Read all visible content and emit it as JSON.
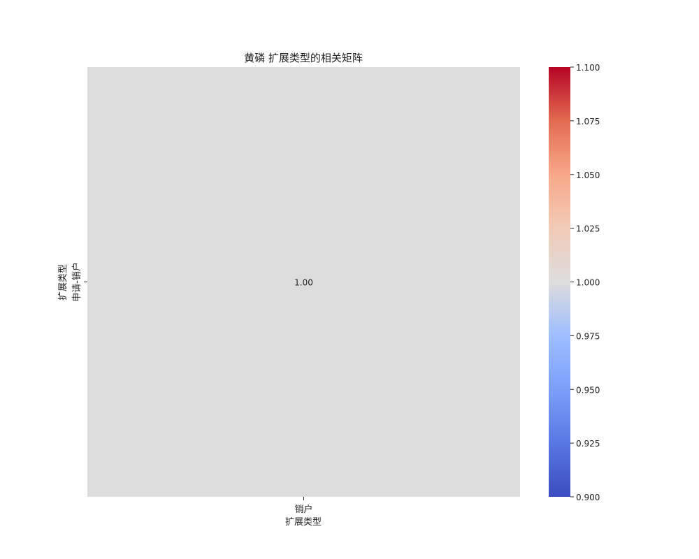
{
  "chart_data": {
    "type": "heatmap",
    "title": "黄磷 扩展类型的相关矩阵",
    "xlabel": "扩展类型",
    "ylabel": "扩展类型",
    "x_categories": [
      "销户"
    ],
    "y_categories": [
      "申请-销户"
    ],
    "values": [
      [
        1.0
      ]
    ],
    "cell_labels": [
      [
        "1.00"
      ]
    ],
    "colorbar": {
      "min": 0.9,
      "max": 1.1,
      "ticks": [
        0.9,
        0.925,
        0.95,
        0.975,
        1.0,
        1.025,
        1.05,
        1.075,
        1.1
      ],
      "tick_labels": [
        "0.900",
        "0.925",
        "0.950",
        "0.975",
        "1.000",
        "1.025",
        "1.050",
        "1.075",
        "1.100"
      ],
      "colormap": "coolwarm",
      "low_color": "#3b4cc0",
      "mid_color": "#dddddd",
      "high_color": "#b40426"
    }
  }
}
